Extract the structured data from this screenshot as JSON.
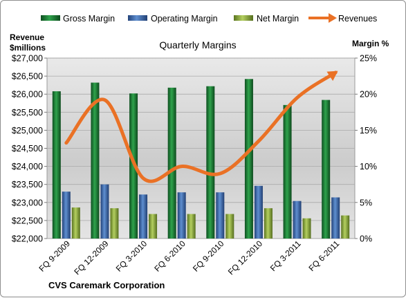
{
  "chart_data": {
    "type": "bar",
    "title": "Quarterly Margins",
    "company": "CVS Caremark Corporation",
    "left_axis_label": [
      "Revenue",
      "$millions"
    ],
    "right_axis_label": "Margin %",
    "left_axis": {
      "min": 22000,
      "max": 27000,
      "step": 500
    },
    "right_axis": {
      "min": 0,
      "max": 25,
      "step": 5,
      "unit": "%"
    },
    "left_ticks": [
      "$22,000",
      "$22,500",
      "$23,000",
      "$23,500",
      "$24,000",
      "$24,500",
      "$25,000",
      "$25,500",
      "$26,000",
      "$26,500",
      "$27,000"
    ],
    "right_ticks": [
      "0%",
      "5%",
      "10%",
      "15%",
      "20%",
      "25%"
    ],
    "categories": [
      "FQ 9-2009",
      "FQ 12-2009",
      "FQ 3-2010",
      "FQ 6-2010",
      "FQ 9-2010",
      "FQ 12-2010",
      "FQ 3-2011",
      "FQ 6-2011"
    ],
    "series": [
      {
        "name": "Gross Margin",
        "kind": "bar",
        "axis": "right",
        "color": "#1d7a35",
        "values": [
          20.4,
          21.6,
          20.1,
          20.9,
          21.1,
          22.1,
          18.5,
          19.2
        ]
      },
      {
        "name": "Operating Margin",
        "kind": "bar",
        "axis": "right",
        "color": "#3c6bb0",
        "values": [
          6.5,
          7.5,
          6.1,
          6.4,
          6.4,
          7.3,
          5.2,
          5.7
        ]
      },
      {
        "name": "Net Margin",
        "kind": "bar",
        "axis": "right",
        "color": "#8fae3c",
        "values": [
          4.3,
          4.2,
          3.4,
          3.4,
          3.4,
          4.2,
          2.8,
          3.2
        ]
      },
      {
        "name": "Revenues",
        "kind": "line",
        "axis": "left",
        "color": "#ea7125",
        "values": [
          24650,
          25840,
          23670,
          24000,
          23800,
          24700,
          25900,
          26600
        ]
      }
    ],
    "legend_position": "top",
    "grid": true
  }
}
